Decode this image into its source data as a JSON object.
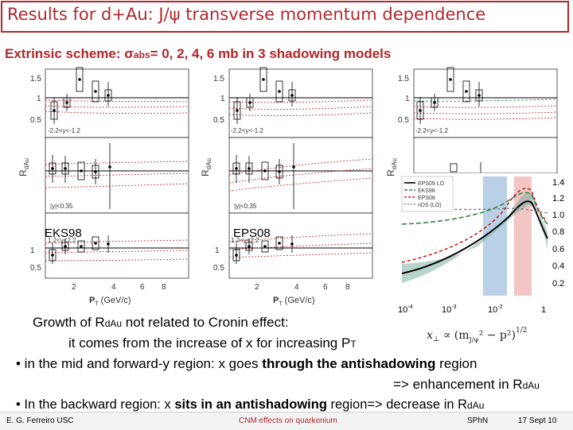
{
  "slide": {
    "title": "Results for d+Au: J/ψ transverse momentum dependence",
    "subtitle_prefix": "Extrinsic scheme: ",
    "sigma": "σ",
    "sigma_sub": "abs",
    "subtitle_suffix": "= 0, 2, 4, 6 mb in 3 shadowing models"
  },
  "plots": {
    "panel1": {
      "ylabel": "R",
      "ylabel_sub": "dAu",
      "model_label": "EKS98",
      "rapidity_labels": [
        "-2.2<y<-1.2",
        "|y|<0.35",
        "1.2<y<2.2"
      ],
      "yticks": [
        "1.5",
        "1",
        "0.5"
      ],
      "xticks": [
        "2",
        "4",
        "6",
        "8"
      ],
      "xlabel": "P",
      "xlabel_sub": "T",
      "xunit": " (GeV/c)"
    },
    "panel2": {
      "ylabel": "R",
      "ylabel_sub": "dAu",
      "model_label": "EPS08",
      "rapidity_labels": [
        "-2.2<y<-1.2",
        "|y|<0.35",
        "1.2<y<2.2"
      ],
      "yticks": [
        "1.5",
        "1",
        "0.5"
      ],
      "xticks": [
        "2",
        "4",
        "6",
        "8"
      ],
      "xlabel": "P",
      "xlabel_sub": "T",
      "xunit": " (GeV/c)"
    },
    "panel3": {
      "ylabel": "R",
      "ylabel_sub": "dAu",
      "rapidity_labels": [
        "-2.2<y<-1.2"
      ],
      "yticks": [
        "1.5",
        "1",
        "0.5"
      ]
    },
    "inset": {
      "legend": [
        "EPS09 LO",
        "EKS98",
        "EPS08",
        "nDS (LO)"
      ],
      "yticks": [
        "1.4",
        "1.2",
        "1.0",
        "0.8",
        "0.6",
        "0.4",
        "0.2"
      ],
      "xticks": [
        "10",
        "10",
        "10",
        "1"
      ],
      "xtick_exps": [
        "-4",
        "-3",
        "-2",
        ""
      ],
      "colors": {
        "eps09": "#000000",
        "eks98": "#2a8a3a",
        "eps08": "#c81e1e",
        "nds": "#7a7a7a",
        "band": "#7fb0a4",
        "blue_band": "#a8c4e0",
        "pink_band": "#f0b8b8"
      }
    }
  },
  "text": {
    "line1_a": "Growth of R",
    "line1_sub": "dAu",
    "line1_b": "  not related to Cronin effect:",
    "line2_a": "it comes from the increase of x for increasing P",
    "line2_sub": "T",
    "formula_a": "x",
    "formula_sub": "⊥",
    "formula_b": " ∝ (m",
    "formula_c": "² − p²)",
    "formula_exp": "1/2",
    "formula_jpsi": "J/ψ",
    "bullet1_a": "• in the mid and forward-y region: x goes ",
    "bullet1_b": "through the antishadowing",
    "bullet1_c": " region",
    "bullet1_d": "=> enhancement in R",
    "bullet1_sub": "dAu",
    "bullet2_a": "• In the backward region: x ",
    "bullet2_b": "sits in an antishadowing",
    "bullet2_c": " region=> decrease in R",
    "bullet2_sub": "dAu"
  },
  "footer": {
    "author": "E. G. Ferreiro USC",
    "topic": "CNM effects on quarkonium",
    "venue": "SPhN",
    "date": "17 Sept 10"
  }
}
